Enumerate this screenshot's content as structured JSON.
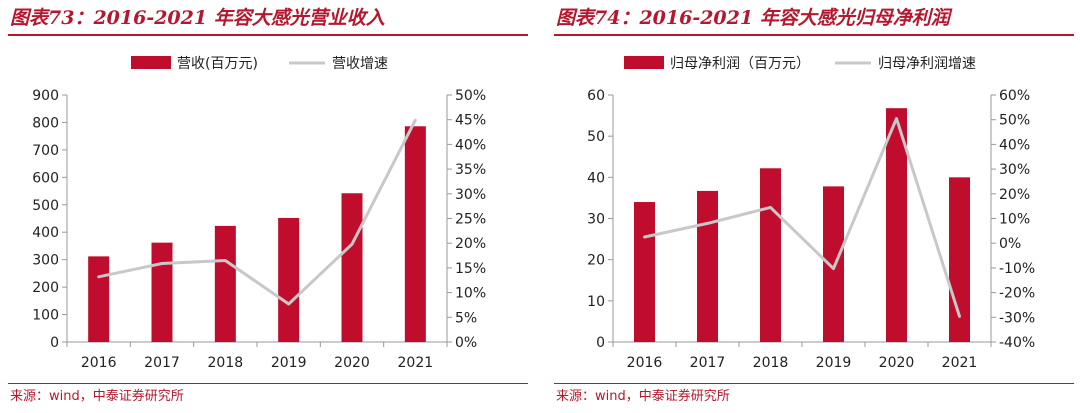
{
  "charts": [
    {
      "title": "图表73：2016-2021 年容大感光营业收入",
      "source": "来源：wind，中泰证券研究所",
      "chart_data": {
        "type": "bar",
        "categories": [
          "2016",
          "2017",
          "2018",
          "2019",
          "2020",
          "2021"
        ],
        "series": [
          {
            "name": "营收(百万元)",
            "type": "bar",
            "axis": "left",
            "color": "#c00d2e",
            "values": [
              312,
              362,
              423,
              452,
              542,
              786
            ]
          },
          {
            "name": "营收增速",
            "type": "line",
            "axis": "right",
            "color": "#c8c8c8",
            "values": [
              13.2,
              15.9,
              16.5,
              7.7,
              19.8,
              44.9
            ]
          }
        ],
        "y_left": {
          "min": 0,
          "max": 900,
          "step": 100,
          "ticks": [
            "0",
            "100",
            "200",
            "300",
            "400",
            "500",
            "600",
            "700",
            "800",
            "900"
          ]
        },
        "y_right": {
          "min": 0,
          "max": 50,
          "step": 5,
          "ticks": [
            "0%",
            "5%",
            "10%",
            "15%",
            "20%",
            "25%",
            "30%",
            "35%",
            "40%",
            "45%",
            "50%"
          ]
        },
        "legend": "top-center",
        "grid": false
      }
    },
    {
      "title": "图表74：2016-2021 年容大感光归母净利润",
      "source": "来源：wind，中泰证券研究所",
      "chart_data": {
        "type": "bar",
        "categories": [
          "2016",
          "2017",
          "2018",
          "2019",
          "2020",
          "2021"
        ],
        "series": [
          {
            "name": "归母净利润（百万元）",
            "type": "bar",
            "axis": "left",
            "color": "#c00d2e",
            "values": [
              34.0,
              36.7,
              42.2,
              37.8,
              56.8,
              40.0
            ]
          },
          {
            "name": "归母净利润增速",
            "type": "line",
            "axis": "right",
            "color": "#c8c8c8",
            "values": [
              2.5,
              8.0,
              14.5,
              -10.3,
              50.5,
              -29.6
            ]
          }
        ],
        "y_left": {
          "min": 0,
          "max": 60,
          "step": 10,
          "ticks": [
            "0",
            "10",
            "20",
            "30",
            "40",
            "50",
            "60"
          ]
        },
        "y_right": {
          "min": -40,
          "max": 60,
          "step": 10,
          "ticks": [
            "-40%",
            "-30%",
            "-20%",
            "-10%",
            "0%",
            "10%",
            "20%",
            "30%",
            "40%",
            "50%",
            "60%"
          ]
        },
        "legend": "top-center",
        "grid": false
      }
    }
  ]
}
